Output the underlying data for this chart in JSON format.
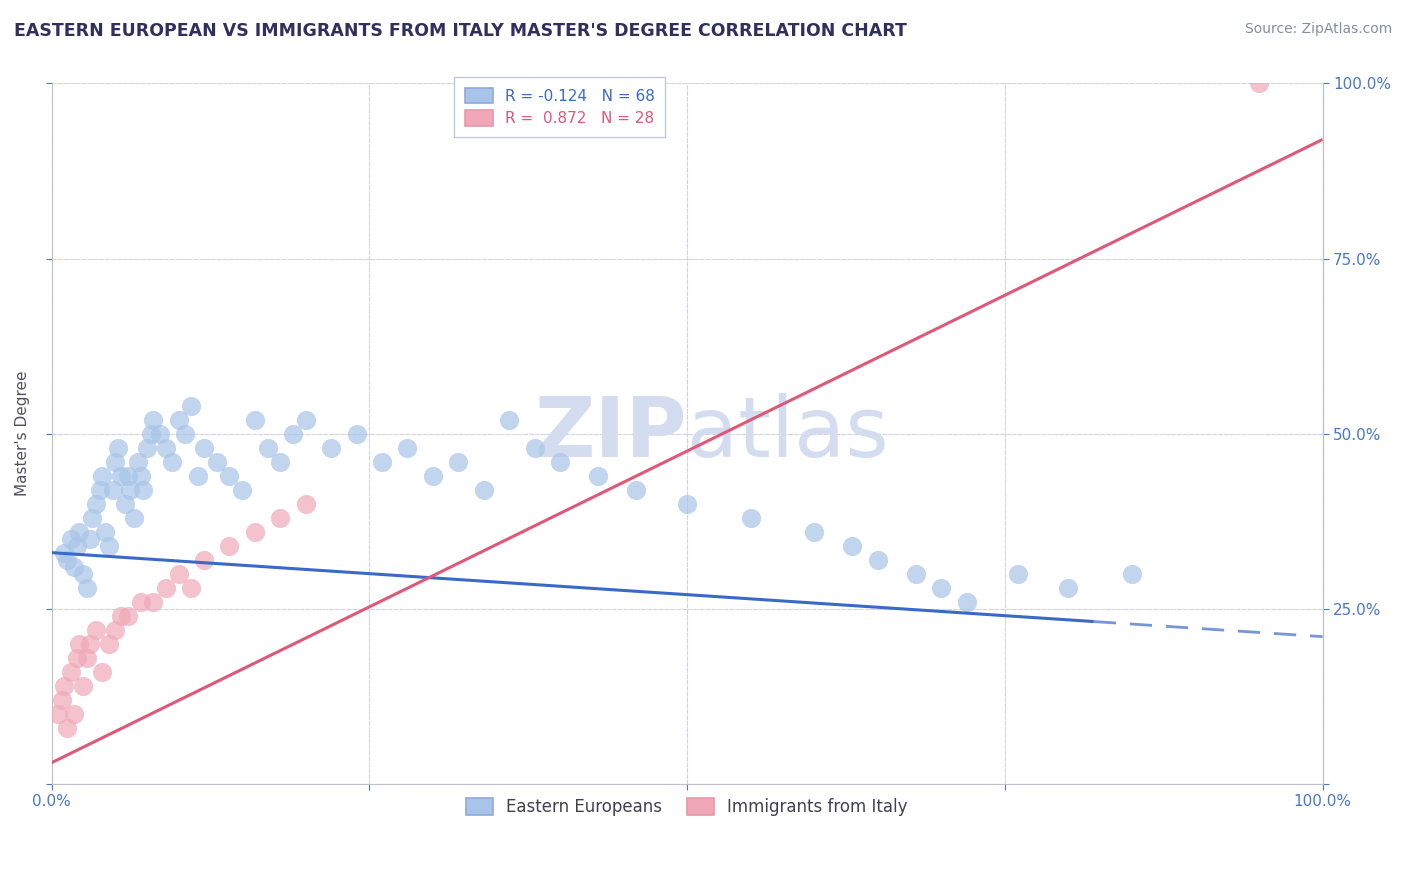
{
  "title": "EASTERN EUROPEAN VS IMMIGRANTS FROM ITALY MASTER'S DEGREE CORRELATION CHART",
  "source_text": "Source: ZipAtlas.com",
  "ylabel": "Master's Degree",
  "xlim": [
    0,
    100
  ],
  "ylim": [
    0,
    100
  ],
  "xticks": [
    0,
    25,
    50,
    75,
    100
  ],
  "yticks": [
    0,
    25,
    50,
    75,
    100
  ],
  "xtick_labels": [
    "0.0%",
    "",
    "",
    "",
    "100.0%"
  ],
  "ytick_labels": [
    "",
    "25.0%",
    "50.0%",
    "75.0%",
    "100.0%"
  ],
  "blue_color": "#A8C4E8",
  "pink_color": "#F0A8B8",
  "blue_line_color": "#3A6AC8",
  "pink_line_color": "#E05878",
  "grid_color": "#C8C8D8",
  "watermark_color": "#D4DCF0",
  "background_color": "#FFFFFF",
  "title_color": "#303060",
  "source_color": "#8090A0",
  "right_axis_color": "#4878C8",
  "blue_scatter_x": [
    1.0,
    1.2,
    1.5,
    1.8,
    2.0,
    2.2,
    2.5,
    2.8,
    3.0,
    3.2,
    3.5,
    3.8,
    4.0,
    4.2,
    4.5,
    4.8,
    5.0,
    5.2,
    5.5,
    5.8,
    6.0,
    6.2,
    6.5,
    6.8,
    7.0,
    7.2,
    7.5,
    7.8,
    8.0,
    8.5,
    9.0,
    9.5,
    10.0,
    10.5,
    11.0,
    11.5,
    12.0,
    13.0,
    14.0,
    15.0,
    16.0,
    17.0,
    18.0,
    19.0,
    20.0,
    22.0,
    24.0,
    26.0,
    28.0,
    30.0,
    32.0,
    34.0,
    36.0,
    38.0,
    40.0,
    43.0,
    46.0,
    50.0,
    55.0,
    60.0,
    63.0,
    65.0,
    68.0,
    70.0,
    72.0,
    76.0,
    80.0,
    85.0
  ],
  "blue_scatter_y": [
    33.0,
    32.0,
    35.0,
    31.0,
    34.0,
    36.0,
    30.0,
    28.0,
    35.0,
    38.0,
    40.0,
    42.0,
    44.0,
    36.0,
    34.0,
    42.0,
    46.0,
    48.0,
    44.0,
    40.0,
    44.0,
    42.0,
    38.0,
    46.0,
    44.0,
    42.0,
    48.0,
    50.0,
    52.0,
    50.0,
    48.0,
    46.0,
    52.0,
    50.0,
    54.0,
    44.0,
    48.0,
    46.0,
    44.0,
    42.0,
    52.0,
    48.0,
    46.0,
    50.0,
    52.0,
    48.0,
    50.0,
    46.0,
    48.0,
    44.0,
    46.0,
    42.0,
    52.0,
    48.0,
    46.0,
    44.0,
    42.0,
    40.0,
    38.0,
    36.0,
    34.0,
    32.0,
    30.0,
    28.0,
    26.0,
    30.0,
    28.0,
    30.0
  ],
  "pink_scatter_x": [
    0.5,
    0.8,
    1.0,
    1.2,
    1.5,
    1.8,
    2.0,
    2.2,
    2.5,
    2.8,
    3.0,
    3.5,
    4.0,
    4.5,
    5.0,
    5.5,
    6.0,
    7.0,
    8.0,
    9.0,
    10.0,
    11.0,
    12.0,
    14.0,
    16.0,
    18.0,
    20.0,
    95.0
  ],
  "pink_scatter_y": [
    10.0,
    12.0,
    14.0,
    8.0,
    16.0,
    10.0,
    18.0,
    20.0,
    14.0,
    18.0,
    20.0,
    22.0,
    16.0,
    20.0,
    22.0,
    24.0,
    24.0,
    26.0,
    26.0,
    28.0,
    30.0,
    28.0,
    32.0,
    34.0,
    36.0,
    38.0,
    40.0,
    100.0
  ],
  "blue_line_x0": 0,
  "blue_line_y0": 33,
  "blue_line_x1": 100,
  "blue_line_y1": 21,
  "blue_line_solid_end": 82,
  "pink_line_x0": 0,
  "pink_line_y0": 3,
  "pink_line_x1": 100,
  "pink_line_y1": 92
}
